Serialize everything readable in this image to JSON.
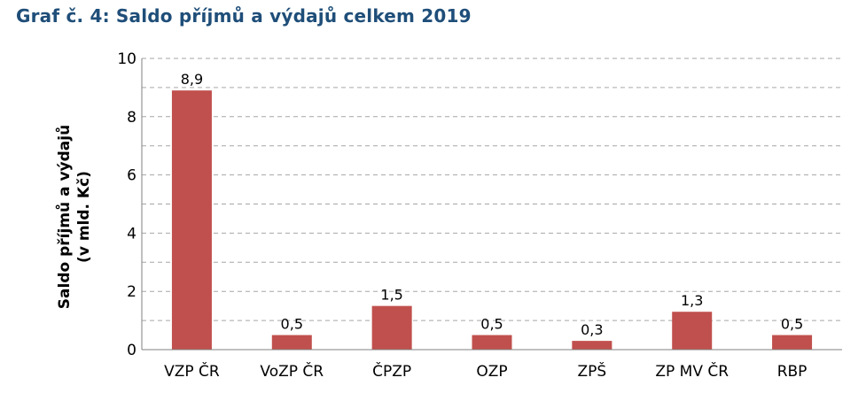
{
  "chart_data": {
    "type": "bar",
    "title": "Graf č. 4: Saldo příjmů a výdajů celkem 2019",
    "ylabel_line1": "Saldo příjmů a výdajů",
    "ylabel_line2": "(v mld. Kč)",
    "xlabel": "",
    "categories": [
      "VZP ČR",
      "VoZP ČR",
      "ČPZP",
      "OZP",
      "ZPŠ",
      "ZP MV ČR",
      "RBP"
    ],
    "values": [
      8.9,
      0.5,
      1.5,
      0.5,
      0.3,
      1.3,
      0.5
    ],
    "data_labels": [
      "8,9",
      "0,5",
      "1,5",
      "0,5",
      "0,3",
      "1,3",
      "0,5"
    ],
    "ylim": [
      0,
      10
    ],
    "yticks": [
      0,
      2,
      4,
      6,
      8,
      10
    ],
    "grid": "horizontal dashed",
    "bar_color": "#c0504d",
    "legend": "none"
  }
}
